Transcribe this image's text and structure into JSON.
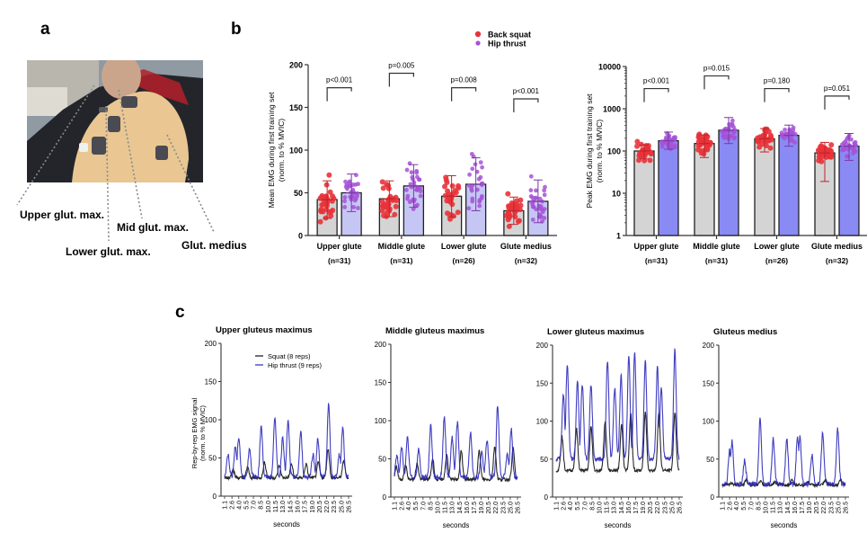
{
  "panels": {
    "a": {
      "letter": "a",
      "labels": [
        "Upper glut. max.",
        "Mid glut. max.",
        "Lower glut. max.",
        "Glut. medius"
      ]
    },
    "b": {
      "letter": "b"
    },
    "c": {
      "letter": "c"
    }
  },
  "colors": {
    "back_squat": "#e8333a",
    "hip_thrust": "#a552d6",
    "bar_bs": "#d4d4d4",
    "bar_ht": "#8a8af5",
    "bar_ht_light": "#c6c6f5",
    "trace_squat": "#111111",
    "trace_hip": "#2a28b8"
  },
  "chart_data": [
    {
      "type": "bar",
      "title": "",
      "ylabel": "Mean EMG during first training set (norm. to % MVIC)",
      "ylabel_lines": [
        "Mean EMG during first training set",
        "(norm. to % MVIC)"
      ],
      "scale": "linear",
      "ylim": [
        0,
        200
      ],
      "yticks": [
        "0",
        "50",
        "100",
        "150",
        "200"
      ],
      "categories": [
        "Upper glute",
        "Middle glute",
        "Lower glute",
        "Glute medius"
      ],
      "n_labels": [
        "(n=31)",
        "(n=31)",
        "(n=26)",
        "(n=32)"
      ],
      "legend": [
        "Back squat",
        "Hip thrust"
      ],
      "legend_position": "top-right",
      "series": [
        {
          "name": "Back squat",
          "values": [
            42,
            43,
            46,
            29
          ],
          "sd_upper": [
            64,
            64,
            70,
            45
          ],
          "sd_lower": [
            20,
            22,
            22,
            13
          ]
        },
        {
          "name": "Hip thrust",
          "values": [
            50,
            58,
            60,
            40
          ],
          "sd_upper": [
            72,
            83,
            91,
            65
          ],
          "sd_lower": [
            28,
            33,
            29,
            15
          ]
        }
      ],
      "p_values": [
        "p<0.001",
        "p=0.005",
        "p=0.008",
        "p<0.001"
      ],
      "bracket_y": [
        173,
        190,
        173,
        160
      ]
    },
    {
      "type": "bar",
      "title": "",
      "ylabel": "Peak EMG during first training set (norm. to % MVIC)",
      "ylabel_lines": [
        "Peak EMG during first training set",
        "(norm. to % MVIC)"
      ],
      "scale": "log",
      "ylim": [
        1,
        10000
      ],
      "yticks": [
        "1",
        "10",
        "100",
        "1000",
        "10000"
      ],
      "categories": [
        "Upper glute",
        "Middle glute",
        "Lower glute",
        "Glute medius"
      ],
      "n_labels": [
        "(n=31)",
        "(n=31)",
        "(n=26)",
        "(n=32)"
      ],
      "series": [
        {
          "name": "Back squat",
          "values": [
            100,
            150,
            195,
            90
          ],
          "sd_upper": [
            140,
            240,
            340,
            160
          ],
          "sd_lower": [
            65,
            70,
            95,
            19
          ]
        },
        {
          "name": "Hip thrust",
          "values": [
            175,
            310,
            235,
            130
          ],
          "sd_upper": [
            280,
            620,
            410,
            260
          ],
          "sd_lower": [
            110,
            150,
            130,
            60
          ]
        }
      ],
      "p_values": [
        "p<0.001",
        "p=0.015",
        "p=0.180",
        "p=0.051"
      ],
      "bracket_y": [
        3000,
        6000,
        3000,
        2000
      ]
    },
    {
      "type": "line",
      "title": "Upper gluteus maximus",
      "xlabel": "seconds",
      "ylabel": "Rep-by-rep EMG signal (norm. to % MVIC)",
      "ylabel_lines": [
        "Rep-by-rep EMG signal",
        "(norm. to % MVIC)"
      ],
      "ylim": [
        0,
        200
      ],
      "yticks": [
        "0",
        "50",
        "100",
        "150",
        "200"
      ],
      "xticks": [
        "1.1",
        "2.6",
        "4.0",
        "5.5",
        "7.0",
        "8.5",
        "10.0",
        "11.5",
        "13.0",
        "14.5",
        "16.0",
        "17.5",
        "19.0",
        "20.5",
        "22.0",
        "23.5",
        "25.0",
        "26.5"
      ],
      "legend": [
        "Squat (8 reps)",
        "Hip thrust (9 reps)"
      ],
      "series": [
        {
          "name": "Squat (8 reps)",
          "baseline": 24,
          "peaks": [
            [
              2.8,
              36
            ],
            [
              5.8,
              38
            ],
            [
              9.3,
              44
            ],
            [
              12.3,
              40
            ],
            [
              14.8,
              42
            ],
            [
              17.8,
              42
            ],
            [
              20.3,
              44
            ],
            [
              22.3,
              62
            ],
            [
              25.5,
              46
            ]
          ]
        },
        {
          "name": "Hip thrust (9 reps)",
          "baseline": 25,
          "peaks": [
            [
              1.8,
              55
            ],
            [
              3.3,
              65
            ],
            [
              4.0,
              77
            ],
            [
              6.2,
              63
            ],
            [
              8.6,
              93
            ],
            [
              11.4,
              105
            ],
            [
              13.0,
              78
            ],
            [
              14.1,
              98
            ],
            [
              16.7,
              84
            ],
            [
              19.2,
              55
            ],
            [
              20.2,
              74
            ],
            [
              22.4,
              120
            ],
            [
              24.6,
              55
            ],
            [
              25.3,
              90
            ]
          ]
        }
      ]
    },
    {
      "type": "line",
      "title": "Middle gluteus maximus",
      "xlabel": "seconds",
      "ylim": [
        0,
        200
      ],
      "yticks": [
        "0",
        "50",
        "100",
        "150",
        "200"
      ],
      "xticks": [
        "1.1",
        "2.6",
        "4.0",
        "5.5",
        "7.0",
        "8.5",
        "10.0",
        "11.5",
        "13.0",
        "14.5",
        "16.0",
        "17.5",
        "19.0",
        "20.5",
        "22.0",
        "23.5",
        "25.0",
        "26.5"
      ],
      "series": [
        {
          "name": "Squat (8 reps)",
          "baseline": 23,
          "peaks": [
            [
              1.5,
              40
            ],
            [
              3.4,
              42
            ],
            [
              5.8,
              44
            ],
            [
              9.0,
              50
            ],
            [
              11.9,
              55
            ],
            [
              14.9,
              60
            ],
            [
              18.6,
              60
            ],
            [
              21.8,
              66
            ],
            [
              25.6,
              64
            ]
          ]
        },
        {
          "name": "Hip thrust (9 reps)",
          "baseline": 26,
          "peaks": [
            [
              1.6,
              55
            ],
            [
              2.6,
              64
            ],
            [
              3.8,
              77
            ],
            [
              6.1,
              62
            ],
            [
              8.6,
              93
            ],
            [
              11.4,
              105
            ],
            [
              13.0,
              78
            ],
            [
              14.1,
              98
            ],
            [
              16.8,
              84
            ],
            [
              19.1,
              60
            ],
            [
              20.2,
              74
            ],
            [
              22.4,
              120
            ],
            [
              24.4,
              55
            ],
            [
              25.2,
              90
            ]
          ]
        }
      ]
    },
    {
      "type": "line",
      "title": "Lower gluteus maximus",
      "xlabel": "seconds",
      "ylim": [
        0,
        200
      ],
      "yticks": [
        "0",
        "50",
        "100",
        "150",
        "200"
      ],
      "xticks": [
        "1.1",
        "2.6",
        "4.0",
        "5.5",
        "7.0",
        "8.5",
        "10.0",
        "11.5",
        "13.0",
        "14.5",
        "16.0",
        "17.5",
        "19.0",
        "20.5",
        "22.0",
        "23.5",
        "25.0",
        "26.5"
      ],
      "series": [
        {
          "name": "Squat (8 reps)",
          "baseline": 35,
          "peaks": [
            [
              2.3,
              80
            ],
            [
              5.3,
              90
            ],
            [
              8.3,
              92
            ],
            [
              11.2,
              100
            ],
            [
              14.6,
              95
            ],
            [
              16.5,
              110
            ],
            [
              19.5,
              112
            ],
            [
              22.3,
              110
            ],
            [
              25.6,
              112
            ]
          ]
        },
        {
          "name": "Hip thrust (9 reps)",
          "baseline": 50,
          "peaks": [
            [
              2.6,
              136
            ],
            [
              3.4,
              176
            ],
            [
              5.5,
              153
            ],
            [
              6.5,
              150
            ],
            [
              8.3,
              148
            ],
            [
              11.7,
              181
            ],
            [
              13.2,
              145
            ],
            [
              14.5,
              160
            ],
            [
              16.1,
              187
            ],
            [
              17.3,
              192
            ],
            [
              19.5,
              180
            ],
            [
              22.0,
              172
            ],
            [
              22.8,
              145
            ],
            [
              25.6,
              194
            ]
          ]
        }
      ]
    },
    {
      "type": "line",
      "title": "Gluteus medius",
      "xlabel": "seconds",
      "ylim": [
        0,
        200
      ],
      "yticks": [
        "0",
        "50",
        "100",
        "150",
        "200"
      ],
      "xticks": [
        "1.1",
        "2.6",
        "4.0",
        "5.5",
        "7.0",
        "8.5",
        "10.0",
        "11.5",
        "13.0",
        "14.5",
        "16.0",
        "17.5",
        "19.0",
        "20.5",
        "22.0",
        "23.5",
        "25.0",
        "26.5"
      ],
      "series": [
        {
          "name": "Squat (8 reps)",
          "baseline": 16,
          "peaks": [
            [
              3.0,
              19
            ],
            [
              6.0,
              22
            ],
            [
              9.0,
              20
            ],
            [
              12.0,
              20
            ],
            [
              15.5,
              22
            ],
            [
              18.8,
              20
            ],
            [
              22.4,
              22
            ],
            [
              25.5,
              23
            ]
          ]
        },
        {
          "name": "Hip thrust (9 reps)",
          "baseline": 17,
          "peaks": [
            [
              2.6,
              62
            ],
            [
              3.1,
              73
            ],
            [
              5.7,
              48
            ],
            [
              8.9,
              104
            ],
            [
              11.6,
              77
            ],
            [
              14.4,
              77
            ],
            [
              16.6,
              79
            ],
            [
              17.1,
              79
            ],
            [
              19.6,
              55
            ],
            [
              21.8,
              85
            ],
            [
              24.9,
              90
            ]
          ]
        }
      ]
    }
  ]
}
